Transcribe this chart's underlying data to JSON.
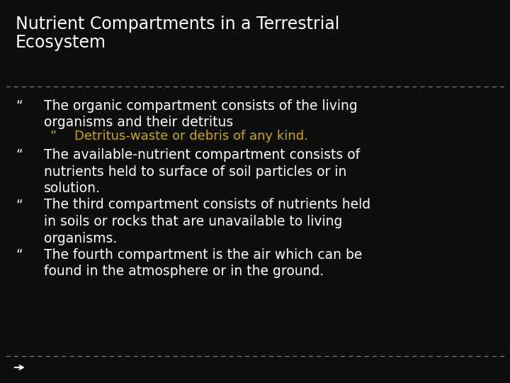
{
  "background_color": "#0d0d0d",
  "title_line1": "Nutrient Compartments in a Terrestrial",
  "title_line2": "Ecosystem",
  "title_color": "#ffffff",
  "title_fontsize": 17,
  "title_fontweight": "normal",
  "bullet_color": "#ffffff",
  "sub_bullet_color": "#ccaa00",
  "bullet_fontsize": 13.5,
  "sub_bullet_fontsize": 13.0,
  "bullet_char": "“",
  "bullets": [
    {
      "text": "The organic compartment consists of the living\norganisms and their detritus",
      "color": "#ffffff",
      "n_lines": 2,
      "sub_bullets": [
        {
          "text": "Detritus-waste or debris of any kind.",
          "color": "#ccaa00",
          "n_lines": 1
        }
      ]
    },
    {
      "text": "The available-nutrient compartment consists of\nnutrients held to surface of soil particles or in\nsolution.",
      "color": "#ffffff",
      "n_lines": 3,
      "sub_bullets": []
    },
    {
      "text": "The third compartment consists of nutrients held\nin soils or rocks that are unavailable to living\norganisms.",
      "color": "#ffffff",
      "n_lines": 3,
      "sub_bullets": []
    },
    {
      "text": "The fourth compartment is the air which can be\nfound in the atmosphere or in the ground.",
      "color": "#ffffff",
      "n_lines": 2,
      "sub_bullets": []
    }
  ],
  "separator_color": "#777777",
  "arrow_color": "#ffffff",
  "fig_width": 7.2,
  "fig_height": 5.4,
  "dpi": 100
}
